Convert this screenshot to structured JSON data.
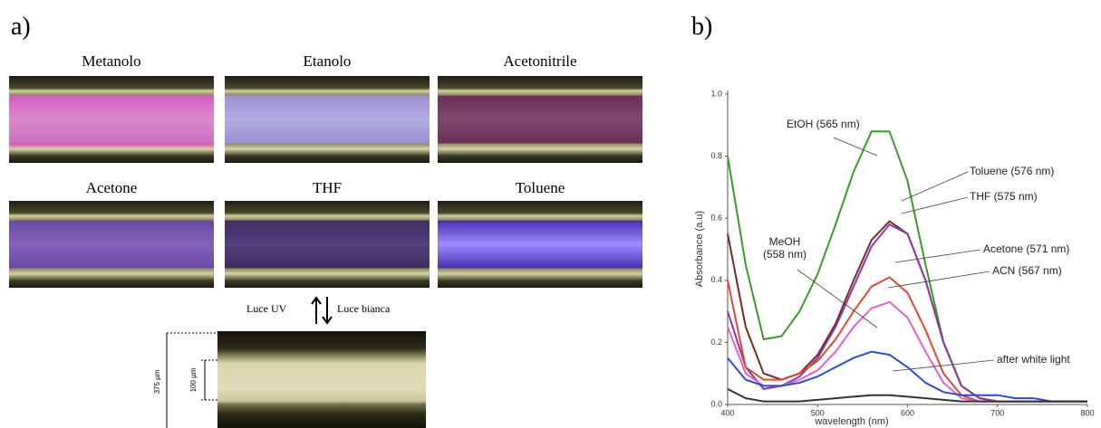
{
  "panel_a": {
    "label": "a)",
    "samples": [
      "Metanolo",
      "Etanolo",
      "Acetonitrile",
      "Acetone",
      "THF",
      "Toluene"
    ],
    "switch": {
      "uv": "Luce UV",
      "white": "Luce bianca"
    },
    "scale": {
      "outer": "375 µm",
      "inner": "100 µm"
    }
  },
  "panel_b_label": "b)",
  "chart_data": {
    "type": "line",
    "xlabel": "wavelength (nm)",
    "ylabel": "Absorbance (a.u)",
    "x": [
      400,
      420,
      440,
      460,
      480,
      500,
      520,
      540,
      560,
      580,
      600,
      620,
      640,
      660,
      680,
      700,
      720,
      740,
      760,
      780,
      800
    ],
    "xlim": [
      400,
      800
    ],
    "xticks": [
      400,
      500,
      600,
      700,
      800
    ],
    "ylim": [
      0,
      1
    ],
    "yticks": [
      {
        "value": 0,
        "label": "0.0"
      },
      0.2,
      0.4,
      0.6,
      0.8,
      {
        "value": 1,
        "label": "1.0"
      }
    ],
    "series": [
      {
        "name": "EtOH (565 nm)",
        "color": "#3a9a2a",
        "values": [
          0.8,
          0.45,
          0.21,
          0.22,
          0.3,
          0.42,
          0.58,
          0.75,
          0.88,
          0.88,
          0.72,
          0.45,
          0.2,
          0.06,
          0.02,
          0.01,
          0.01,
          0.01,
          0.01,
          0.01,
          0.01
        ]
      },
      {
        "name": "Toluene (576 nm)",
        "color": "#7a2a2a",
        "values": [
          0.55,
          0.25,
          0.1,
          0.08,
          0.1,
          0.16,
          0.26,
          0.4,
          0.53,
          0.59,
          0.55,
          0.4,
          0.2,
          0.06,
          0.02,
          0.01,
          0.01,
          0.01,
          0.01,
          0.01,
          0.01
        ]
      },
      {
        "name": "THF (575 nm)",
        "color": "#8a3aa0",
        "values": [
          0.3,
          0.12,
          0.05,
          0.06,
          0.09,
          0.15,
          0.25,
          0.38,
          0.51,
          0.58,
          0.55,
          0.4,
          0.2,
          0.06,
          0.02,
          0.01,
          0.01,
          0.01,
          0.01,
          0.01,
          0.01
        ]
      },
      {
        "name": "Acetone (571 nm)",
        "color": "#e04a2a",
        "values": [
          0.4,
          0.12,
          0.08,
          0.08,
          0.1,
          0.14,
          0.21,
          0.3,
          0.38,
          0.41,
          0.36,
          0.24,
          0.1,
          0.03,
          0.01,
          0.01,
          0.01,
          0.01,
          0.01,
          0.01,
          0.01
        ]
      },
      {
        "name": "ACN (567 nm)",
        "color": "#e060d0",
        "values": [
          0.25,
          0.1,
          0.06,
          0.06,
          0.08,
          0.11,
          0.17,
          0.25,
          0.31,
          0.33,
          0.28,
          0.17,
          0.07,
          0.02,
          0.01,
          0.01,
          0.01,
          0.01,
          0.01,
          0.01,
          0.01
        ]
      },
      {
        "name": "MeOH (558 nm)",
        "color": "#2a4ae0",
        "values": [
          0.15,
          0.08,
          0.06,
          0.06,
          0.07,
          0.09,
          0.12,
          0.15,
          0.17,
          0.16,
          0.12,
          0.07,
          0.04,
          0.03,
          0.03,
          0.03,
          0.02,
          0.02,
          0.01,
          0.01,
          0.01
        ]
      },
      {
        "name": "after white light",
        "color": "#333333",
        "values": [
          0.05,
          0.02,
          0.01,
          0.01,
          0.01,
          0.015,
          0.02,
          0.025,
          0.03,
          0.03,
          0.025,
          0.02,
          0.015,
          0.01,
          0.01,
          0.01,
          0.01,
          0.01,
          0.01,
          0.01,
          0.01
        ]
      }
    ]
  }
}
